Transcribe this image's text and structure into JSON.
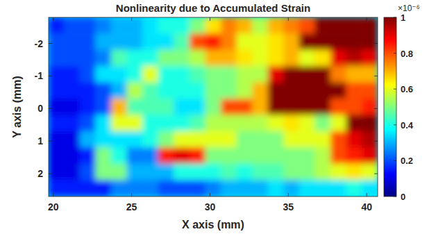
{
  "chart_data": {
    "type": "heatmap",
    "title": "Nonlinearity due to Accumulated Strain",
    "x_label": "X axis (mm)",
    "y_label": "Y axis (mm)",
    "xlim": [
      19.7,
      40.7
    ],
    "xticks": [
      20,
      25,
      30,
      35,
      40
    ],
    "ylim": [
      2.7,
      -2.8
    ],
    "yticks": [
      -2,
      -1,
      0,
      1,
      2
    ],
    "x": [
      20.2,
      21.2,
      22.2,
      23.2,
      24.2,
      25.2,
      26.2,
      27.2,
      28.2,
      29.2,
      30.2,
      31.2,
      32.2,
      33.2,
      34.2,
      35.2,
      36.2,
      37.2,
      38.2,
      39.2,
      40.2
    ],
    "y": [
      -2.55,
      -2.05,
      -1.55,
      -1.05,
      -0.55,
      -0.05,
      0.45,
      0.95,
      1.45,
      1.95,
      2.45
    ],
    "values": [
      [
        0.15,
        0.2,
        0.2,
        0.25,
        0.3,
        0.3,
        0.35,
        0.4,
        0.4,
        0.5,
        0.65,
        0.75,
        0.7,
        0.55,
        0.7,
        0.75,
        0.8,
        1,
        1,
        1,
        1
      ],
      [
        0.2,
        0.2,
        0.2,
        0.3,
        0.3,
        0.3,
        0.35,
        0.35,
        0.45,
        0.8,
        0.85,
        0.75,
        0.6,
        0.6,
        0.65,
        0.7,
        1,
        1,
        1,
        1,
        1
      ],
      [
        0.2,
        0.2,
        0.2,
        0.25,
        0.45,
        0.4,
        0.4,
        0.5,
        0.5,
        0.55,
        0.7,
        0.7,
        0.65,
        0.6,
        0.65,
        0.7,
        0.6,
        0.65,
        0.9,
        0.95,
        0.9
      ],
      [
        0.15,
        0.15,
        0.2,
        0.35,
        0.35,
        0.4,
        0.6,
        0.4,
        0.4,
        0.45,
        0.5,
        0.5,
        0.55,
        0.55,
        0.9,
        1,
        1,
        1,
        0.75,
        0.7,
        0.7
      ],
      [
        0.15,
        0.15,
        0.15,
        0.2,
        0.3,
        0.55,
        0.45,
        0.4,
        0.4,
        0.4,
        0.5,
        0.5,
        0.55,
        0.7,
        1,
        1,
        1,
        1,
        1,
        0.8,
        0.8
      ],
      [
        0.1,
        0.1,
        0.15,
        0.2,
        0.7,
        0.45,
        0.45,
        0.45,
        0.35,
        0.35,
        0.5,
        0.8,
        0.8,
        0.7,
        1,
        1,
        1,
        1,
        0.8,
        0.8,
        0.85
      ],
      [
        0.15,
        0.15,
        0.2,
        0.35,
        0.6,
        0.6,
        0.4,
        0.4,
        0.4,
        0.45,
        0.55,
        0.55,
        0.55,
        0.55,
        0.6,
        0.65,
        0.6,
        0.5,
        0.6,
        1,
        1
      ],
      [
        0.1,
        0.1,
        0.3,
        0.35,
        0.35,
        0.35,
        0.4,
        0.5,
        0.6,
        0.6,
        0.6,
        0.6,
        0.5,
        0.5,
        0.5,
        0.6,
        0.6,
        0.6,
        0.8,
        0.9,
        0.95
      ],
      [
        0.1,
        0.1,
        0.15,
        0.5,
        0.4,
        0.25,
        0.25,
        0.85,
        0.9,
        0.85,
        0.5,
        0.5,
        0.5,
        0.5,
        0.5,
        0.5,
        0.5,
        0.55,
        0.8,
        0.85,
        0.9
      ],
      [
        0.1,
        0.1,
        0.2,
        0.5,
        0.5,
        0.3,
        0.3,
        0.3,
        0.4,
        0.4,
        0.4,
        0.45,
        0.4,
        0.45,
        0.45,
        0.5,
        0.5,
        0.55,
        0.6,
        0.65,
        0.6
      ],
      [
        0.15,
        0.15,
        0.15,
        0.15,
        0.25,
        0.25,
        0.25,
        0.2,
        0.2,
        0.2,
        0.25,
        0.3,
        0.3,
        0.3,
        0.35,
        0.3,
        0.35,
        0.35,
        0.35,
        0.4,
        0.35
      ]
    ],
    "colorbar": {
      "range": [
        0,
        1
      ],
      "ticks": [
        0,
        0.2,
        0.4,
        0.6,
        0.8,
        1
      ],
      "multiplier": "×10⁻⁶"
    }
  }
}
